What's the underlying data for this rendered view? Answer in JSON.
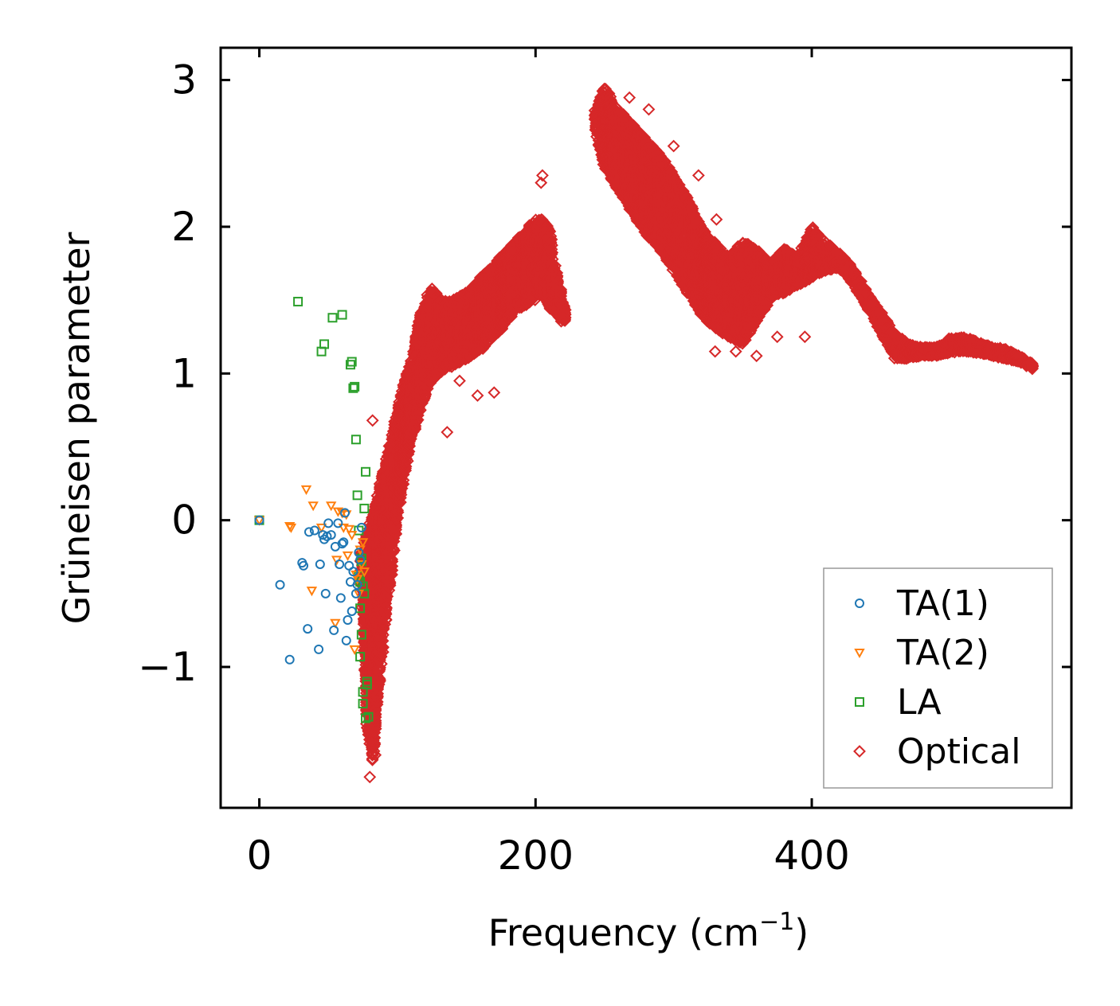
{
  "chart_data": {
    "type": "scatter",
    "title": "",
    "xlabel": "Frequency (cm",
    "xlabel_sup": "−1",
    "xlabel_close": ")",
    "ylabel": "Grüneisen parameter",
    "xlim": [
      -28,
      588
    ],
    "ylim": [
      -1.96,
      3.22
    ],
    "xticks": [
      0,
      200,
      400
    ],
    "xtick_labels": [
      "0",
      "200",
      "400"
    ],
    "yticks": [
      -1,
      0,
      1,
      2,
      3
    ],
    "ytick_labels": [
      "−1",
      "0",
      "1",
      "2",
      "3"
    ],
    "legend_position": "lower-right",
    "grid": false,
    "colors": {
      "TA(1)": "#1f77b4",
      "TA(2)": "#ff7f0e",
      "LA": "#2ca02c",
      "Optical": "#d62728"
    },
    "series": [
      {
        "name": "TA(1)",
        "marker": "circle",
        "color": "#1f77b4",
        "points": [
          [
            0,
            0
          ],
          [
            15,
            -0.44
          ],
          [
            22,
            -0.95
          ],
          [
            31,
            -0.29
          ],
          [
            32,
            -0.31
          ],
          [
            35,
            -0.74
          ],
          [
            36,
            -0.08
          ],
          [
            40,
            -0.07
          ],
          [
            43,
            -0.88
          ],
          [
            44,
            -0.3
          ],
          [
            46,
            -0.1
          ],
          [
            47,
            -0.13
          ],
          [
            48,
            -0.5
          ],
          [
            49,
            -0.11
          ],
          [
            50,
            -0.02
          ],
          [
            52,
            -0.1
          ],
          [
            54,
            -0.75
          ],
          [
            55,
            -0.18
          ],
          [
            57,
            -0.02
          ],
          [
            58,
            -0.3
          ],
          [
            59,
            -0.53
          ],
          [
            60,
            -0.16
          ],
          [
            61,
            -0.15
          ],
          [
            62,
            0.05
          ],
          [
            63,
            -0.82
          ],
          [
            64,
            -0.68
          ],
          [
            65,
            -0.31
          ],
          [
            66,
            -0.42
          ],
          [
            67,
            -0.62
          ],
          [
            68,
            -0.35
          ],
          [
            70,
            -0.5
          ],
          [
            71,
            -0.44
          ],
          [
            72,
            -0.22
          ],
          [
            73,
            -0.27
          ],
          [
            74,
            -0.05
          ]
        ]
      },
      {
        "name": "TA(2)",
        "marker": "triangle-down",
        "color": "#ff7f0e",
        "points": [
          [
            0,
            0
          ],
          [
            22,
            -0.04
          ],
          [
            23,
            -0.05
          ],
          [
            34,
            0.21
          ],
          [
            38,
            -0.48
          ],
          [
            39,
            0.1
          ],
          [
            45,
            -0.05
          ],
          [
            52,
            0.1
          ],
          [
            55,
            -0.7
          ],
          [
            56,
            -0.27
          ],
          [
            57,
            0.06
          ],
          [
            60,
            0.05
          ],
          [
            61,
            -0.05
          ],
          [
            63,
            0.04
          ],
          [
            64,
            -0.24
          ],
          [
            65,
            -0.06
          ],
          [
            67,
            -0.1
          ],
          [
            69,
            -0.88
          ],
          [
            70,
            -0.37
          ],
          [
            71,
            -0.4
          ],
          [
            72,
            -0.5
          ],
          [
            73,
            -0.2
          ],
          [
            74,
            -0.3
          ],
          [
            75,
            -0.15
          ],
          [
            76,
            -0.35
          ]
        ]
      },
      {
        "name": "LA",
        "marker": "square",
        "color": "#2ca02c",
        "points": [
          [
            0,
            0
          ],
          [
            28,
            1.49
          ],
          [
            45,
            1.15
          ],
          [
            47,
            1.2
          ],
          [
            53,
            1.38
          ],
          [
            60,
            1.4
          ],
          [
            66,
            1.06
          ],
          [
            67,
            1.08
          ],
          [
            68,
            0.9
          ],
          [
            69,
            0.91
          ],
          [
            70,
            0.55
          ],
          [
            71,
            0.17
          ],
          [
            72,
            -0.07
          ],
          [
            73,
            -0.93
          ],
          [
            74,
            -0.78
          ],
          [
            75,
            -1.17
          ],
          [
            76,
            0.08
          ],
          [
            77,
            0.33
          ],
          [
            78,
            -1.12
          ],
          [
            79,
            -1.34
          ],
          [
            72,
            -0.38
          ],
          [
            73,
            -0.42
          ],
          [
            74,
            -0.26
          ],
          [
            75,
            -0.45
          ],
          [
            76,
            -0.5
          ],
          [
            75,
            -1.25
          ],
          [
            77,
            -1.35
          ],
          [
            78,
            -1.1
          ],
          [
            73,
            -0.6
          ],
          [
            74,
            -0.28
          ]
        ]
      },
      {
        "name": "Optical",
        "marker": "diamond",
        "color": "#d62728",
        "band": [
          {
            "x": 74,
            "lo": -0.5,
            "hi": -0.2
          },
          {
            "x": 78,
            "lo": -1.4,
            "hi": -0.1
          },
          {
            "x": 82,
            "lo": -1.65,
            "hi": 0.05
          },
          {
            "x": 86,
            "lo": -1.2,
            "hi": 0.2
          },
          {
            "x": 90,
            "lo": -0.8,
            "hi": 0.35
          },
          {
            "x": 95,
            "lo": -0.4,
            "hi": 0.55
          },
          {
            "x": 100,
            "lo": 0.0,
            "hi": 0.75
          },
          {
            "x": 105,
            "lo": 0.3,
            "hi": 0.95
          },
          {
            "x": 110,
            "lo": 0.55,
            "hi": 1.1
          },
          {
            "x": 115,
            "lo": 0.7,
            "hi": 1.35
          },
          {
            "x": 120,
            "lo": 0.85,
            "hi": 1.5
          },
          {
            "x": 125,
            "lo": 0.95,
            "hi": 1.6
          },
          {
            "x": 130,
            "lo": 1.0,
            "hi": 1.5
          },
          {
            "x": 140,
            "lo": 1.05,
            "hi": 1.5
          },
          {
            "x": 150,
            "lo": 1.1,
            "hi": 1.55
          },
          {
            "x": 160,
            "lo": 1.15,
            "hi": 1.65
          },
          {
            "x": 170,
            "lo": 1.25,
            "hi": 1.75
          },
          {
            "x": 180,
            "lo": 1.35,
            "hi": 1.85
          },
          {
            "x": 190,
            "lo": 1.45,
            "hi": 1.95
          },
          {
            "x": 200,
            "lo": 1.5,
            "hi": 2.05
          },
          {
            "x": 205,
            "lo": 1.55,
            "hi": 2.05
          },
          {
            "x": 210,
            "lo": 1.45,
            "hi": 2.0
          },
          {
            "x": 215,
            "lo": 1.4,
            "hi": 1.7
          },
          {
            "x": 222,
            "lo": 1.32,
            "hi": 1.42
          },
          {
            "x": 243,
            "lo": 2.65,
            "hi": 2.8
          },
          {
            "x": 250,
            "lo": 2.4,
            "hi": 2.95
          },
          {
            "x": 260,
            "lo": 2.25,
            "hi": 2.8
          },
          {
            "x": 270,
            "lo": 2.1,
            "hi": 2.7
          },
          {
            "x": 280,
            "lo": 1.95,
            "hi": 2.6
          },
          {
            "x": 290,
            "lo": 1.85,
            "hi": 2.5
          },
          {
            "x": 300,
            "lo": 1.7,
            "hi": 2.35
          },
          {
            "x": 310,
            "lo": 1.55,
            "hi": 2.2
          },
          {
            "x": 320,
            "lo": 1.4,
            "hi": 2.0
          },
          {
            "x": 330,
            "lo": 1.3,
            "hi": 1.9
          },
          {
            "x": 340,
            "lo": 1.25,
            "hi": 1.8
          },
          {
            "x": 350,
            "lo": 1.2,
            "hi": 1.9
          },
          {
            "x": 360,
            "lo": 1.35,
            "hi": 1.85
          },
          {
            "x": 370,
            "lo": 1.5,
            "hi": 1.75
          },
          {
            "x": 380,
            "lo": 1.55,
            "hi": 1.85
          },
          {
            "x": 390,
            "lo": 1.6,
            "hi": 1.8
          },
          {
            "x": 400,
            "lo": 1.65,
            "hi": 2.0
          },
          {
            "x": 410,
            "lo": 1.7,
            "hi": 1.9
          },
          {
            "x": 420,
            "lo": 1.72,
            "hi": 1.82
          },
          {
            "x": 430,
            "lo": 1.6,
            "hi": 1.72
          },
          {
            "x": 440,
            "lo": 1.45,
            "hi": 1.55
          },
          {
            "x": 450,
            "lo": 1.28,
            "hi": 1.42
          },
          {
            "x": 460,
            "lo": 1.1,
            "hi": 1.28
          },
          {
            "x": 470,
            "lo": 1.1,
            "hi": 1.2
          },
          {
            "x": 480,
            "lo": 1.12,
            "hi": 1.18
          },
          {
            "x": 490,
            "lo": 1.12,
            "hi": 1.18
          },
          {
            "x": 500,
            "lo": 1.14,
            "hi": 1.24
          },
          {
            "x": 510,
            "lo": 1.15,
            "hi": 1.25
          },
          {
            "x": 520,
            "lo": 1.14,
            "hi": 1.22
          },
          {
            "x": 530,
            "lo": 1.12,
            "hi": 1.18
          },
          {
            "x": 540,
            "lo": 1.1,
            "hi": 1.17
          },
          {
            "x": 550,
            "lo": 1.08,
            "hi": 1.12
          },
          {
            "x": 560,
            "lo": 1.03,
            "hi": 1.07
          }
        ],
        "outliers": [
          [
            80,
            -1.75
          ],
          [
            82,
            0.68
          ],
          [
            84,
            -1.6
          ],
          [
            92,
            -0.5
          ],
          [
            136,
            0.6
          ],
          [
            145,
            0.95
          ],
          [
            158,
            0.85
          ],
          [
            170,
            0.87
          ],
          [
            205,
            2.35
          ],
          [
            204,
            2.3
          ],
          [
            268,
            2.88
          ],
          [
            282,
            2.8
          ],
          [
            300,
            2.55
          ],
          [
            318,
            2.35
          ],
          [
            331,
            2.05
          ],
          [
            360,
            1.12
          ],
          [
            375,
            1.25
          ],
          [
            395,
            1.25
          ],
          [
            330,
            1.15
          ],
          [
            345,
            1.15
          ]
        ]
      }
    ]
  },
  "legend": [
    {
      "label": "TA(1)",
      "marker": "circle",
      "color": "#1f77b4"
    },
    {
      "label": "TA(2)",
      "marker": "triangle-down",
      "color": "#ff7f0e"
    },
    {
      "label": "LA",
      "marker": "square",
      "color": "#2ca02c"
    },
    {
      "label": "Optical",
      "marker": "diamond",
      "color": "#d62728"
    }
  ]
}
